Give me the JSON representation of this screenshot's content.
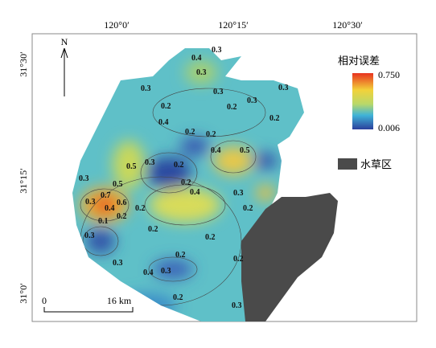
{
  "map": {
    "longitude_labels": [
      "120°0′",
      "120°15′",
      "120°30′"
    ],
    "latitude_labels": [
      "31°30′",
      "31°15′",
      "31°0′"
    ],
    "north": "N",
    "scale_bar": {
      "start": "0",
      "end": "16 km"
    },
    "legend": {
      "title": "相对误差",
      "max": "0.750",
      "min": "0.006",
      "grass": "水草区"
    },
    "contour_labels": [
      "0.3",
      "0.4",
      "0.3",
      "0.3",
      "0.2",
      "0.4",
      "0.3",
      "0.2",
      "0.3",
      "0.3",
      "0.2",
      "0.2",
      "0.4",
      "0.2",
      "0.5",
      "0.5",
      "0.3",
      "0.2",
      "0.2",
      "0.4",
      "0.3",
      "0.5",
      "0.7",
      "0.6",
      "0.4",
      "0.3",
      "0.2",
      "0.1",
      "0.2",
      "0.3",
      "0.2",
      "0.2",
      "0.2",
      "0.3",
      "0.2",
      "0.3",
      "0.4",
      "0.2",
      "0.2",
      "0.3",
      "0.3"
    ]
  }
}
